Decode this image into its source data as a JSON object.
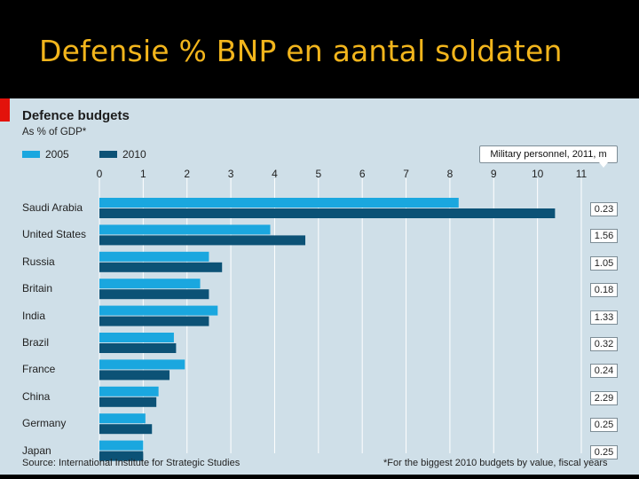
{
  "slide": {
    "title": "Defensie % BNP en aantal soldaten"
  },
  "chart_data": {
    "type": "bar",
    "orientation": "horizontal",
    "title": "Defence budgets",
    "subtitle": "As % of GDP*",
    "categories": [
      "Saudi Arabia",
      "United States",
      "Russia",
      "Britain",
      "India",
      "Brazil",
      "France",
      "China",
      "Germany",
      "Japan"
    ],
    "series": [
      {
        "name": "2005",
        "color": "#1aa7df",
        "values": [
          8.2,
          3.9,
          2.5,
          2.3,
          2.7,
          1.7,
          1.95,
          1.35,
          1.05,
          1.0
        ]
      },
      {
        "name": "2010",
        "color": "#0c5276",
        "values": [
          10.4,
          4.7,
          2.8,
          2.5,
          2.5,
          1.75,
          1.6,
          1.3,
          1.2,
          1.0
        ]
      }
    ],
    "x_ticks": [
      "0",
      "1",
      "2",
      "3",
      "4",
      "5",
      "6",
      "7",
      "8",
      "9",
      "10",
      "11"
    ],
    "xlim": [
      0,
      11
    ],
    "grid": true,
    "legend": "top-left",
    "personnel_header": "Military personnel, 2011, m",
    "personnel": [
      "0.23",
      "1.56",
      "1.05",
      "0.18",
      "1.33",
      "0.32",
      "0.24",
      "2.29",
      "0.25",
      "0.25"
    ],
    "source": "Source: International Institute for Strategic Studies",
    "footnote": "*For the biggest 2010 budgets by value, fiscal years"
  },
  "colors": {
    "title": "#f2b51c",
    "panel": "#cfdfe8",
    "bar_2005": "#1aa7df",
    "bar_2010": "#0c5276",
    "brand_red": "#e3120b"
  }
}
